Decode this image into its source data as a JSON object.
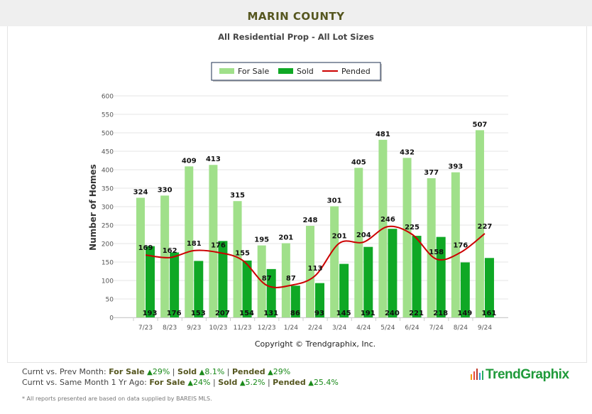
{
  "header": {
    "title": "MARIN COUNTY"
  },
  "chart_data": {
    "type": "bar",
    "title": "All Residential Prop - All Lot Sizes",
    "xlabel": "",
    "ylabel": "Number of Homes",
    "ylim": [
      0,
      600
    ],
    "yticks": [
      0,
      50,
      100,
      150,
      200,
      250,
      300,
      350,
      400,
      450,
      500,
      550,
      600
    ],
    "grid": true,
    "legend": "top-center",
    "categories": [
      "7/23",
      "8/23",
      "9/23",
      "10/23",
      "11/23",
      "12/23",
      "1/24",
      "2/24",
      "3/24",
      "4/24",
      "5/24",
      "6/24",
      "7/24",
      "8/24",
      "9/24"
    ],
    "series": [
      {
        "name": "For Sale",
        "type": "bar",
        "color": "#a0e08a",
        "values": [
          324,
          330,
          409,
          413,
          315,
          195,
          201,
          248,
          301,
          405,
          481,
          432,
          377,
          393,
          507
        ]
      },
      {
        "name": "Sold",
        "type": "bar",
        "color": "#0fa825",
        "values": [
          193,
          176,
          153,
          207,
          154,
          131,
          86,
          93,
          145,
          191,
          240,
          221,
          218,
          149,
          161
        ]
      },
      {
        "name": "Pended",
        "type": "line",
        "color": "#cc0000",
        "values": [
          169,
          162,
          181,
          176,
          155,
          87,
          87,
          113,
          201,
          204,
          246,
          225,
          158,
          176,
          227
        ]
      }
    ],
    "footer": "Copyright © Trendgraphix, Inc."
  },
  "stats": {
    "prev": {
      "label": "Curnt vs. Prev Month:",
      "for_sale_label": "For Sale",
      "for_sale": "29%",
      "sold_label": "Sold",
      "sold": "8.1%",
      "pended_label": "Pended",
      "pended": "29%"
    },
    "year": {
      "label": "Curnt vs. Same Month 1 Yr Ago:",
      "for_sale_label": "For Sale",
      "for_sale": "24%",
      "sold_label": "Sold",
      "sold": "5.2%",
      "pended_label": "Pended",
      "pended": "25.4%"
    }
  },
  "footnote": "* All reports presented are based on data supplied by BAREIS MLS.",
  "logo": {
    "text": "TrendGraphix"
  }
}
